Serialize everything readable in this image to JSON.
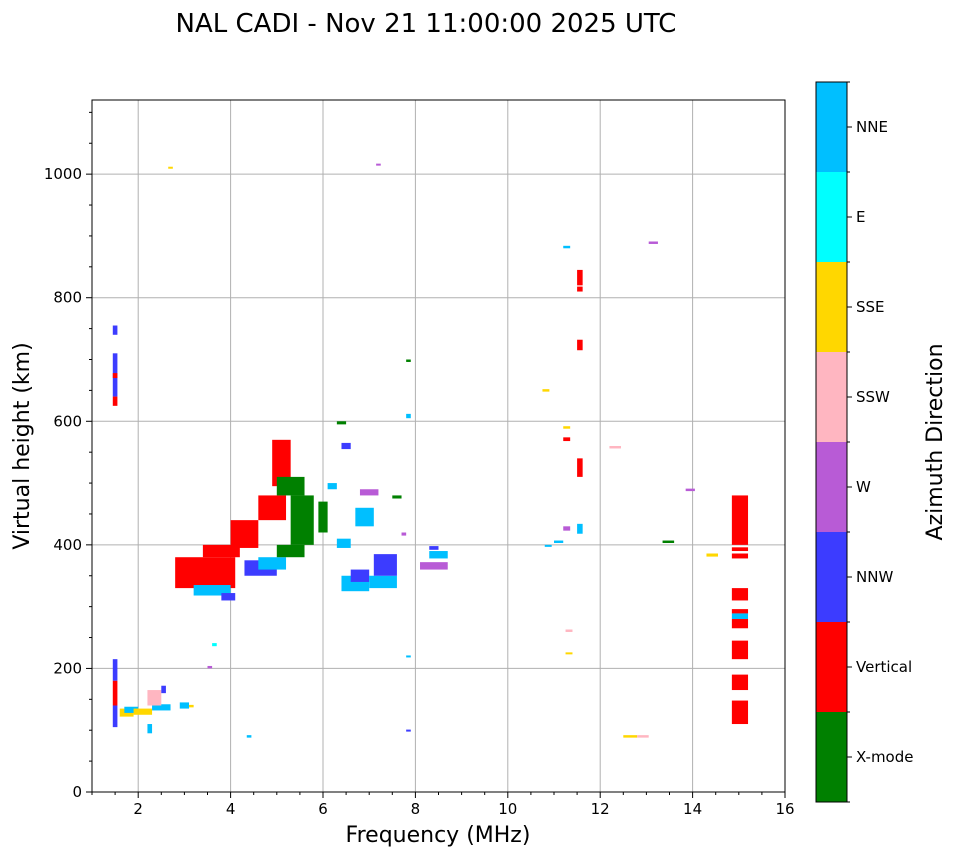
{
  "chart_data": {
    "type": "scatter",
    "title": "NAL CADI - Nov 21 11:00:00 2025 UTC",
    "xlabel": "Frequency (MHz)",
    "ylabel": "Virtual height (km)",
    "xlim": [
      1,
      16
    ],
    "ylim": [
      0,
      1120
    ],
    "xticks": [
      2,
      4,
      6,
      8,
      10,
      12,
      14,
      16
    ],
    "yticks": [
      0,
      200,
      400,
      600,
      800,
      1000
    ],
    "grid": true,
    "colorbar": {
      "label": "Azimuth Direction",
      "categories": [
        {
          "name": "X-mode",
          "color": "#008000"
        },
        {
          "name": "Vertical",
          "color": "#ff0000"
        },
        {
          "name": "NNW",
          "color": "#3c3cff"
        },
        {
          "name": "W",
          "color": "#b85bd6"
        },
        {
          "name": "SSW",
          "color": "#ffb6c1"
        },
        {
          "name": "SSE",
          "color": "#ffd700"
        },
        {
          "name": "E",
          "color": "#00ffff"
        },
        {
          "name": "NNE",
          "color": "#00bfff"
        }
      ]
    },
    "traces": [
      {
        "dir": "NNW",
        "fmin": 1.45,
        "fmax": 1.55,
        "hmin": 740,
        "hmax": 755
      },
      {
        "dir": "NNW",
        "fmin": 1.45,
        "fmax": 1.55,
        "hmin": 640,
        "hmax": 710
      },
      {
        "dir": "Vertical",
        "fmin": 1.45,
        "fmax": 1.55,
        "hmin": 625,
        "hmax": 640
      },
      {
        "dir": "Vertical",
        "fmin": 1.45,
        "fmax": 1.55,
        "hmin": 670,
        "hmax": 678
      },
      {
        "dir": "NNW",
        "fmin": 1.45,
        "fmax": 1.55,
        "hmin": 180,
        "hmax": 215
      },
      {
        "dir": "Vertical",
        "fmin": 1.45,
        "fmax": 1.55,
        "hmin": 140,
        "hmax": 180
      },
      {
        "dir": "NNW",
        "fmin": 1.45,
        "fmax": 1.55,
        "hmin": 105,
        "hmax": 140
      },
      {
        "dir": "SSE",
        "fmin": 1.6,
        "fmax": 1.9,
        "hmin": 122,
        "hmax": 135
      },
      {
        "dir": "NNE",
        "fmin": 1.7,
        "fmax": 2.0,
        "hmin": 128,
        "hmax": 138
      },
      {
        "dir": "SSE",
        "fmin": 1.9,
        "fmax": 2.3,
        "hmin": 125,
        "hmax": 135
      },
      {
        "dir": "NNE",
        "fmin": 2.3,
        "fmax": 2.7,
        "hmin": 132,
        "hmax": 142
      },
      {
        "dir": "SSW",
        "fmin": 2.2,
        "fmax": 2.5,
        "hmin": 140,
        "hmax": 165
      },
      {
        "dir": "NNW",
        "fmin": 2.5,
        "fmax": 2.6,
        "hmin": 160,
        "hmax": 172
      },
      {
        "dir": "NNE",
        "fmin": 2.2,
        "fmax": 2.3,
        "hmin": 95,
        "hmax": 110
      },
      {
        "dir": "NNE",
        "fmin": 2.9,
        "fmax": 3.1,
        "hmin": 135,
        "hmax": 145
      },
      {
        "dir": "SSE",
        "fmin": 3.1,
        "fmax": 3.2,
        "hmin": 137,
        "hmax": 141
      },
      {
        "dir": "Vertical",
        "fmin": 2.8,
        "fmax": 4.1,
        "hmin": 330,
        "hmax": 380
      },
      {
        "dir": "Vertical",
        "fmin": 3.4,
        "fmax": 4.2,
        "hmin": 380,
        "hmax": 400
      },
      {
        "dir": "NNE",
        "fmin": 3.2,
        "fmax": 4.0,
        "hmin": 318,
        "hmax": 335
      },
      {
        "dir": "NNW",
        "fmin": 3.8,
        "fmax": 4.1,
        "hmin": 310,
        "hmax": 322
      },
      {
        "dir": "Vertical",
        "fmin": 4.0,
        "fmax": 4.6,
        "hmin": 395,
        "hmax": 440
      },
      {
        "dir": "NNW",
        "fmin": 4.3,
        "fmax": 5.0,
        "hmin": 350,
        "hmax": 375
      },
      {
        "dir": "NNE",
        "fmin": 4.6,
        "fmax": 5.2,
        "hmin": 360,
        "hmax": 380
      },
      {
        "dir": "X-mode",
        "fmin": 5.0,
        "fmax": 5.6,
        "hmin": 380,
        "hmax": 400
      },
      {
        "dir": "X-mode",
        "fmin": 5.3,
        "fmax": 5.8,
        "hmin": 400,
        "hmax": 480
      },
      {
        "dir": "Vertical",
        "fmin": 4.6,
        "fmax": 5.2,
        "hmin": 440,
        "hmax": 480
      },
      {
        "dir": "Vertical",
        "fmin": 4.9,
        "fmax": 5.3,
        "hmin": 495,
        "hmax": 570
      },
      {
        "dir": "X-mode",
        "fmin": 5.0,
        "fmax": 5.6,
        "hmin": 480,
        "hmax": 510
      },
      {
        "dir": "X-mode",
        "fmin": 5.9,
        "fmax": 6.1,
        "hmin": 420,
        "hmax": 470
      },
      {
        "dir": "X-mode",
        "fmin": 6.3,
        "fmax": 6.5,
        "hmin": 595,
        "hmax": 600
      },
      {
        "dir": "NNE",
        "fmin": 6.4,
        "fmax": 7.0,
        "hmin": 325,
        "hmax": 350
      },
      {
        "dir": "NNW",
        "fmin": 6.6,
        "fmax": 7.0,
        "hmin": 340,
        "hmax": 360
      },
      {
        "dir": "NNE",
        "fmin": 7.0,
        "fmax": 7.6,
        "hmin": 330,
        "hmax": 350
      },
      {
        "dir": "NNW",
        "fmin": 7.1,
        "fmax": 7.6,
        "hmin": 350,
        "hmax": 385
      },
      {
        "dir": "NNE",
        "fmin": 6.3,
        "fmax": 6.6,
        "hmin": 395,
        "hmax": 410
      },
      {
        "dir": "NNE",
        "fmin": 6.7,
        "fmax": 7.1,
        "hmin": 430,
        "hmax": 460
      },
      {
        "dir": "NNW",
        "fmin": 6.4,
        "fmax": 6.6,
        "hmin": 555,
        "hmax": 565
      },
      {
        "dir": "W",
        "fmin": 6.8,
        "fmax": 7.2,
        "hmin": 480,
        "hmax": 490
      },
      {
        "dir": "NNE",
        "fmin": 6.1,
        "fmax": 6.3,
        "hmin": 490,
        "hmax": 500
      },
      {
        "dir": "X-mode",
        "fmin": 7.5,
        "fmax": 7.7,
        "hmin": 475,
        "hmax": 480
      },
      {
        "dir": "W",
        "fmin": 7.7,
        "fmax": 7.8,
        "hmin": 415,
        "hmax": 420
      },
      {
        "dir": "NNE",
        "fmin": 7.8,
        "fmax": 7.9,
        "hmin": 605,
        "hmax": 612
      },
      {
        "dir": "X-mode",
        "fmin": 7.8,
        "fmax": 7.9,
        "hmin": 696,
        "hmax": 700
      },
      {
        "dir": "NNE",
        "fmin": 7.8,
        "fmax": 7.9,
        "hmin": 218,
        "hmax": 221
      },
      {
        "dir": "NNW",
        "fmin": 7.8,
        "fmax": 7.9,
        "hmin": 98,
        "hmax": 101
      },
      {
        "dir": "W",
        "fmin": 8.1,
        "fmax": 8.7,
        "hmin": 360,
        "hmax": 372
      },
      {
        "dir": "NNE",
        "fmin": 8.3,
        "fmax": 8.7,
        "hmin": 378,
        "hmax": 390
      },
      {
        "dir": "NNW",
        "fmin": 8.3,
        "fmax": 8.5,
        "hmin": 392,
        "hmax": 398
      },
      {
        "dir": "SSE",
        "fmin": 2.65,
        "fmax": 2.75,
        "hmin": 1009,
        "hmax": 1012
      },
      {
        "dir": "W",
        "fmin": 7.15,
        "fmax": 7.25,
        "hmin": 1014,
        "hmax": 1017
      },
      {
        "dir": "W",
        "fmin": 3.5,
        "fmax": 3.6,
        "hmin": 200,
        "hmax": 204
      },
      {
        "dir": "E",
        "fmin": 3.6,
        "fmax": 3.7,
        "hmin": 236,
        "hmax": 241
      },
      {
        "dir": "NNE",
        "fmin": 4.35,
        "fmax": 4.45,
        "hmin": 88,
        "hmax": 92
      },
      {
        "dir": "NNE",
        "fmin": 11.2,
        "fmax": 11.35,
        "hmin": 880,
        "hmax": 884
      },
      {
        "dir": "W",
        "fmin": 13.05,
        "fmax": 13.25,
        "hmin": 887,
        "hmax": 891
      },
      {
        "dir": "Vertical",
        "fmin": 11.5,
        "fmax": 11.62,
        "hmin": 820,
        "hmax": 845
      },
      {
        "dir": "Vertical",
        "fmin": 11.5,
        "fmax": 11.62,
        "hmin": 810,
        "hmax": 818
      },
      {
        "dir": "Vertical",
        "fmin": 11.5,
        "fmax": 11.62,
        "hmin": 715,
        "hmax": 732
      },
      {
        "dir": "SSE",
        "fmin": 10.75,
        "fmax": 10.9,
        "hmin": 648,
        "hmax": 652
      },
      {
        "dir": "SSE",
        "fmin": 11.2,
        "fmax": 11.35,
        "hmin": 588,
        "hmax": 592
      },
      {
        "dir": "Vertical",
        "fmin": 11.2,
        "fmax": 11.35,
        "hmin": 568,
        "hmax": 574
      },
      {
        "dir": "Vertical",
        "fmin": 11.5,
        "fmax": 11.62,
        "hmin": 510,
        "hmax": 540
      },
      {
        "dir": "NNE",
        "fmin": 11.5,
        "fmax": 11.62,
        "hmin": 418,
        "hmax": 434
      },
      {
        "dir": "W",
        "fmin": 11.2,
        "fmax": 11.35,
        "hmin": 423,
        "hmax": 430
      },
      {
        "dir": "NNE",
        "fmin": 11.0,
        "fmax": 11.2,
        "hmin": 403,
        "hmax": 407
      },
      {
        "dir": "NNE",
        "fmin": 10.8,
        "fmax": 10.95,
        "hmin": 397,
        "hmax": 400
      },
      {
        "dir": "SSW",
        "fmin": 12.2,
        "fmax": 12.45,
        "hmin": 556,
        "hmax": 560
      },
      {
        "dir": "W",
        "fmin": 13.85,
        "fmax": 14.05,
        "hmin": 487,
        "hmax": 491
      },
      {
        "dir": "X-mode",
        "fmin": 13.35,
        "fmax": 13.6,
        "hmin": 403,
        "hmax": 407
      },
      {
        "dir": "SSE",
        "fmin": 14.3,
        "fmax": 14.55,
        "hmin": 381,
        "hmax": 386
      },
      {
        "dir": "SSW",
        "fmin": 11.25,
        "fmax": 11.4,
        "hmin": 259,
        "hmax": 263
      },
      {
        "dir": "SSE",
        "fmin": 11.25,
        "fmax": 11.4,
        "hmin": 223,
        "hmax": 226
      },
      {
        "dir": "SSE",
        "fmin": 12.5,
        "fmax": 12.8,
        "hmin": 88,
        "hmax": 92
      },
      {
        "dir": "SSW",
        "fmin": 12.8,
        "fmax": 13.05,
        "hmin": 88,
        "hmax": 92
      },
      {
        "dir": "Vertical",
        "fmin": 14.85,
        "fmax": 15.2,
        "hmin": 400,
        "hmax": 480
      },
      {
        "dir": "Vertical",
        "fmin": 14.85,
        "fmax": 15.2,
        "hmin": 390,
        "hmax": 396
      },
      {
        "dir": "Vertical",
        "fmin": 14.85,
        "fmax": 15.2,
        "hmin": 378,
        "hmax": 386
      },
      {
        "dir": "Vertical",
        "fmin": 14.85,
        "fmax": 15.2,
        "hmin": 310,
        "hmax": 330
      },
      {
        "dir": "Vertical",
        "fmin": 14.85,
        "fmax": 15.2,
        "hmin": 289,
        "hmax": 296
      },
      {
        "dir": "NNE",
        "fmin": 14.85,
        "fmax": 15.2,
        "hmin": 280,
        "hmax": 289
      },
      {
        "dir": "Vertical",
        "fmin": 14.85,
        "fmax": 15.2,
        "hmin": 265,
        "hmax": 280
      },
      {
        "dir": "Vertical",
        "fmin": 14.85,
        "fmax": 15.2,
        "hmin": 215,
        "hmax": 245
      },
      {
        "dir": "Vertical",
        "fmin": 14.85,
        "fmax": 15.2,
        "hmin": 165,
        "hmax": 190
      },
      {
        "dir": "Vertical",
        "fmin": 14.85,
        "fmax": 15.2,
        "hmin": 110,
        "hmax": 148
      }
    ]
  }
}
